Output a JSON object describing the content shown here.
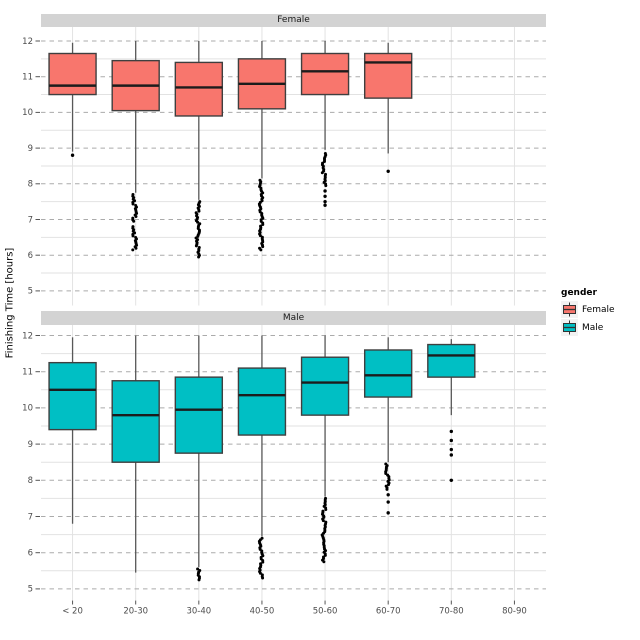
{
  "legend": {
    "title": "gender",
    "entries": [
      {
        "label": "Female",
        "color": "#F8766D"
      },
      {
        "label": "Male",
        "color": "#00BFC4"
      }
    ]
  },
  "chart_data": {
    "type": "boxplot",
    "title": "",
    "xlabel": "",
    "ylabel": "Finishing Time [hours]",
    "facets": [
      "Female",
      "Male"
    ],
    "categories": [
      "< 20",
      "20-30",
      "30-40",
      "40-50",
      "50-60",
      "60-70",
      "70-80",
      "80-90"
    ],
    "y_ticks": [
      5,
      6,
      7,
      8,
      9,
      10,
      11,
      12
    ],
    "ylim": [
      4.6,
      12.4
    ],
    "grid": {
      "major_horizontal": "dashed",
      "minor_horizontal": "solid",
      "vertical_at_categories": true
    },
    "legend_position": "right",
    "colors": {
      "Female": "#F8766D",
      "Male": "#00BFC4"
    },
    "style": {
      "box_stroke": "#3f3f3f",
      "median_stroke": "#1c1c1c",
      "whisker_stroke": "#585858",
      "outlier_color": "#000000",
      "major_grid_color": "#ABABAB",
      "minor_grid_color": "#E2E2E2",
      "tick_color": "#555555",
      "tick_label_color": "#4D4D4D",
      "strip_bg": "#D3D3D3"
    },
    "series": [
      {
        "facet": "Female",
        "boxes": [
          {
            "category": "< 20",
            "whisker_low": 8.9,
            "q1": 10.5,
            "median": 10.75,
            "q3": 11.65,
            "whisker_high": 11.95,
            "outlier_points": [
              8.8
            ],
            "outlier_runs": []
          },
          {
            "category": "20-30",
            "whisker_low": 7.75,
            "q1": 10.05,
            "median": 10.75,
            "q3": 11.45,
            "whisker_high": 12,
            "outlier_points": [],
            "outlier_runs": [
              [
                6.95,
                7.7
              ],
              [
                6.15,
                6.8
              ]
            ]
          },
          {
            "category": "30-40",
            "whisker_low": 7.55,
            "q1": 9.9,
            "median": 10.7,
            "q3": 11.4,
            "whisker_high": 12,
            "outlier_points": [],
            "outlier_runs": [
              [
                5.95,
                7.5
              ]
            ]
          },
          {
            "category": "40-50",
            "whisker_low": 8.15,
            "q1": 10.1,
            "median": 10.8,
            "q3": 11.5,
            "whisker_high": 12,
            "outlier_points": [],
            "outlier_runs": [
              [
                6.15,
                8.1
              ]
            ]
          },
          {
            "category": "50-60",
            "whisker_low": 8.95,
            "q1": 10.5,
            "median": 11.15,
            "q3": 11.65,
            "whisker_high": 12,
            "outlier_points": [
              7.8,
              7.65,
              7.5,
              7.4
            ],
            "outlier_runs": [
              [
                7.95,
                8.85
              ]
            ]
          },
          {
            "category": "60-70",
            "whisker_low": 8.85,
            "q1": 10.4,
            "median": 11.4,
            "q3": 11.65,
            "whisker_high": 11.95,
            "outlier_points": [
              8.35
            ],
            "outlier_runs": []
          },
          null,
          null
        ]
      },
      {
        "facet": "Male",
        "boxes": [
          {
            "category": "< 20",
            "whisker_low": 6.8,
            "q1": 9.4,
            "median": 10.5,
            "q3": 11.25,
            "whisker_high": 11.95,
            "outlier_points": [],
            "outlier_runs": []
          },
          {
            "category": "20-30",
            "whisker_low": 5.45,
            "q1": 8.5,
            "median": 9.8,
            "q3": 10.75,
            "whisker_high": 12,
            "outlier_points": [],
            "outlier_runs": []
          },
          {
            "category": "30-40",
            "whisker_low": 5.6,
            "q1": 8.75,
            "median": 9.95,
            "q3": 10.85,
            "whisker_high": 12,
            "outlier_points": [],
            "outlier_runs": [
              [
                5.25,
                5.55
              ]
            ]
          },
          {
            "category": "40-50",
            "whisker_low": 6.45,
            "q1": 9.25,
            "median": 10.35,
            "q3": 11.1,
            "whisker_high": 12,
            "outlier_points": [],
            "outlier_runs": [
              [
                5.3,
                6.4
              ]
            ]
          },
          {
            "category": "50-60",
            "whisker_low": 7.55,
            "q1": 9.8,
            "median": 10.7,
            "q3": 11.4,
            "whisker_high": 12,
            "outlier_points": [],
            "outlier_runs": [
              [
                5.75,
                7.5
              ]
            ]
          },
          {
            "category": "60-70",
            "whisker_low": 8.5,
            "q1": 10.3,
            "median": 10.9,
            "q3": 11.6,
            "whisker_high": 11.95,
            "outlier_points": [
              7.6,
              7.4,
              7.1
            ],
            "outlier_runs": [
              [
                7.75,
                8.45
              ]
            ]
          },
          {
            "category": "70-80",
            "whisker_low": 9.8,
            "q1": 10.85,
            "median": 11.45,
            "q3": 11.75,
            "whisker_high": 11.9,
            "outlier_points": [
              9.35,
              9.1,
              8.85,
              8.7,
              8.0
            ],
            "outlier_runs": []
          },
          null
        ]
      }
    ]
  }
}
